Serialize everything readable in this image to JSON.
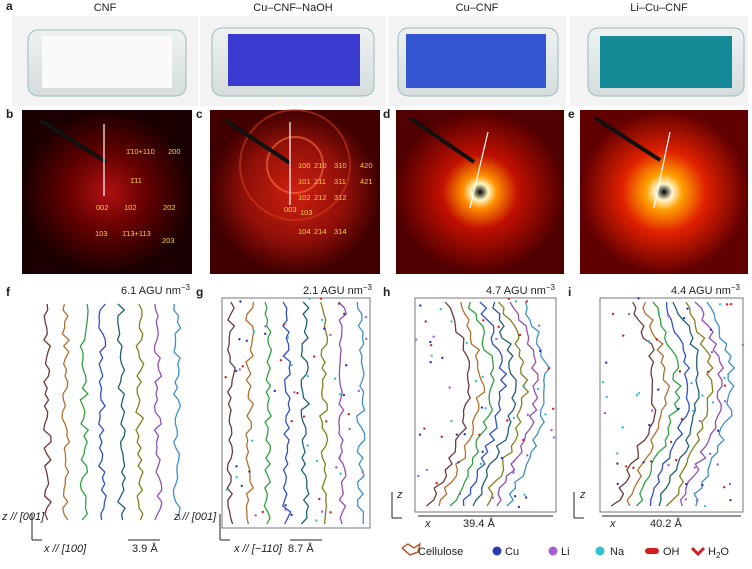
{
  "panel_labels": [
    "a",
    "b",
    "c",
    "d",
    "e",
    "f",
    "g",
    "h",
    "i"
  ],
  "photo_titles": [
    "CNF",
    "Cu–CNF–NaOH",
    "Cu–CNF",
    "Li–Cu–CNF"
  ],
  "b_indices": [
    "1̄10+110",
    "200",
    "1̄11",
    "002",
    "102",
    "202",
    "103",
    "1̄13+113",
    "203"
  ],
  "c_indices": [
    "100",
    "210",
    "310",
    "420",
    "101",
    "211",
    "311",
    "421",
    "102",
    "212",
    "312",
    "003",
    "103",
    "104",
    "214",
    "314"
  ],
  "sims": [
    {
      "density": "6.1 AGU nm",
      "exp": "−3",
      "z_axis": "z // [001]",
      "x_axis": "x // [100]",
      "spacing": "3.9 Å"
    },
    {
      "density": "2.1 AGU nm",
      "exp": "−3",
      "z_axis": "z // [001]",
      "x_axis": "x // [−110]",
      "spacing": "8.7 Å"
    },
    {
      "density": "4.7 AGU nm",
      "exp": "−3",
      "z_axis": "z",
      "x_axis": "x",
      "spacing": "39.4 Å"
    },
    {
      "density": "4.4 AGU nm",
      "exp": "−3",
      "z_axis": "z",
      "x_axis": "x",
      "spacing": "40.2 Å"
    }
  ],
  "legend": [
    {
      "text": "Cellulose"
    },
    {
      "text": "Cu"
    },
    {
      "text": "Li"
    },
    {
      "text": "Na"
    },
    {
      "text": "OH"
    },
    {
      "text": "H",
      "sub": "2",
      "tail": "O"
    }
  ]
}
